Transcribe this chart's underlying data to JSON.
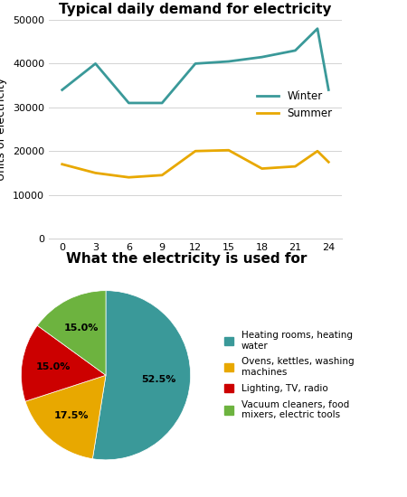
{
  "line_title": "Typical daily demand for electricity",
  "pie_title": "What the electricity is used for",
  "ylabel": "Units of electricity",
  "winter_x": [
    0,
    3,
    6,
    9,
    12,
    15,
    18,
    21,
    23,
    24
  ],
  "winter_y": [
    34000,
    40000,
    31000,
    31000,
    40000,
    40500,
    41500,
    43000,
    48000,
    34000
  ],
  "summer_x": [
    0,
    3,
    6,
    9,
    12,
    15,
    18,
    21,
    23,
    24
  ],
  "summer_y": [
    17000,
    15000,
    14000,
    14500,
    20000,
    20200,
    16000,
    16500,
    20000,
    17500
  ],
  "winter_color": "#3a9999",
  "summer_color": "#e8a800",
  "ylim": [
    0,
    50000
  ],
  "yticks": [
    0,
    10000,
    20000,
    30000,
    40000,
    50000
  ],
  "xticks": [
    0,
    3,
    6,
    9,
    12,
    15,
    18,
    21,
    24
  ],
  "pie_values": [
    52.5,
    17.5,
    15.0,
    15.0
  ],
  "pie_colors": [
    "#3a9999",
    "#e8a800",
    "#cc0000",
    "#6db33f"
  ],
  "pie_labels": [
    "52.5%",
    "17.5%",
    "15.0%",
    "15.0%"
  ],
  "pie_legend_labels": [
    "Heating rooms, heating\nwater",
    "Ovens, kettles, washing\nmachines",
    "Lighting, TV, radio",
    "Vacuum cleaners, food\nmixers, electric tools"
  ],
  "line_title_fontsize": 11,
  "pie_title_fontsize": 11,
  "axis_label_fontsize": 9,
  "tick_fontsize": 8,
  "legend_fontsize": 8.5
}
